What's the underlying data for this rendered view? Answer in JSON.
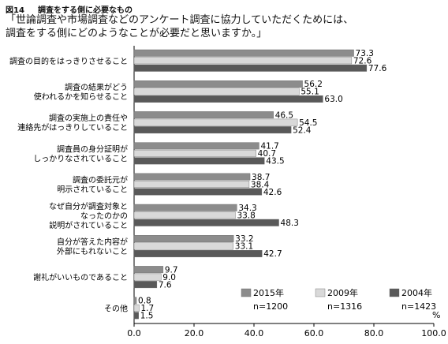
{
  "header": {
    "fig_label": "図14",
    "fig_title": "調査をする側に必要なもの",
    "question_line1": "「世論調査や市場調査などのアンケート調査に協力していただくためには、",
    "question_line2": "調査をする側にどのようなことが必要だと思いますか。」"
  },
  "colors": {
    "s2015": "#8c8c8c",
    "s2009": "#d9d9d9",
    "s2004": "#595959"
  },
  "chart_data": {
    "type": "bar",
    "orientation": "horizontal",
    "unit": "%",
    "xlim": [
      0,
      100
    ],
    "xticks": [
      "0.0",
      "20.0",
      "40.0",
      "60.0",
      "80.0",
      "100.0"
    ],
    "categories": [
      [
        "調査の目的をはっきりさせること"
      ],
      [
        "調査の結果がどう",
        "使われるかを知らせること"
      ],
      [
        "調査の実施上の責任や",
        "連絡先がはっきりしていること"
      ],
      [
        "調査員の身分証明が",
        "しっかりなされていること"
      ],
      [
        "調査の委託元が",
        "明示されていること"
      ],
      [
        "なぜ自分が調査対象と",
        "なったのかの",
        "説明がされていること"
      ],
      [
        "自分が答えた内容が",
        "外部にもれないこと"
      ],
      [
        "謝礼がいいものであること"
      ],
      [
        "その他"
      ]
    ],
    "series": [
      {
        "name": "2015年",
        "n": "n=1200",
        "color_key": "s2015",
        "values": [
          73.3,
          56.2,
          46.5,
          41.7,
          38.7,
          34.3,
          33.2,
          9.7,
          0.8
        ]
      },
      {
        "name": "2009年",
        "n": "n=1316",
        "color_key": "s2009",
        "values": [
          72.6,
          55.1,
          54.5,
          40.7,
          38.4,
          33.8,
          33.1,
          9.0,
          1.7
        ]
      },
      {
        "name": "2004年",
        "n": "n=1423",
        "color_key": "s2004",
        "values": [
          77.6,
          63.0,
          52.4,
          43.5,
          42.6,
          48.3,
          42.7,
          7.6,
          1.5
        ]
      }
    ]
  }
}
